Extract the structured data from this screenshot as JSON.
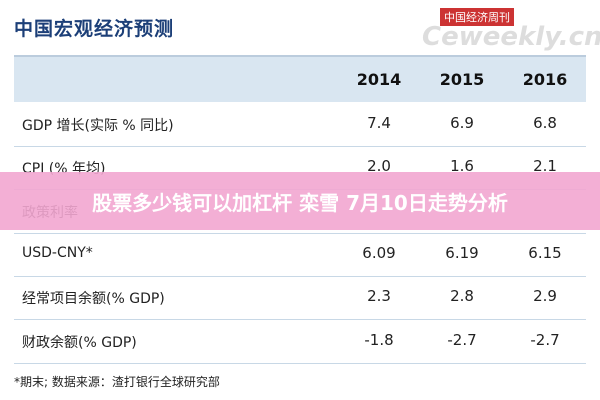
{
  "header": {
    "title": "中国宏观经济预测",
    "watermark": "中国经济周刊",
    "watermark_site": "Ceweekly.cn"
  },
  "table": {
    "columns": [
      "2014",
      "2015",
      "2016"
    ],
    "rows": [
      {
        "label": "GDP 增长(实际 % 同比)",
        "values": [
          "7.4",
          "6.9",
          "6.8"
        ]
      },
      {
        "label": "CPI (% 年均)",
        "values": [
          "2.0",
          "1.6",
          "2.1"
        ]
      },
      {
        "label": "政策利率"
      },
      {
        "label": "USD-CNY*",
        "values": [
          "6.09",
          "6.19",
          "6.15"
        ]
      },
      {
        "label": "经常项目余额(% GDP)",
        "values": [
          "2.3",
          "2.8",
          "2.9"
        ]
      },
      {
        "label": "财政余额(% GDP)",
        "values": [
          "-1.8",
          "-2.7",
          "-2.7"
        ]
      }
    ]
  },
  "banner": "股票多少钱可以加杠杆 栾雪 7月10日走势分析",
  "footnote": "*期末;   数据来源：渣打银行全球研究部"
}
